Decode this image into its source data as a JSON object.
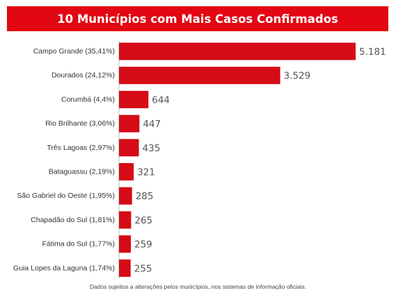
{
  "title": "10 Municípios com Mais Casos Confirmados",
  "footnote": "Dados sujeitos a alterações pelos municípios, nos sistemas de informação oficiais.",
  "colors": {
    "accent": "#e30613",
    "bar": "#d50b17",
    "label": "#333333",
    "value": "#555555"
  },
  "chart_data": {
    "type": "bar",
    "orientation": "horizontal",
    "title": "10 Municípios com Mais Casos Confirmados",
    "categories": [
      "Campo Grande (35,41%)",
      "Dourados (24,12%)",
      "Corumbá (4,4%)",
      "Rio Brilhante (3,06%)",
      "Três Lagoas (2,97%)",
      "Bataguassu (2,19%)",
      "São Gabriel do Oeste (1,95%)",
      "Chapadão do Sul (1,81%)",
      "Fátima do Sul (1,77%)",
      "Guia Lopes da Laguna (1,74%)"
    ],
    "values": [
      5181,
      3529,
      644,
      447,
      435,
      321,
      285,
      265,
      259,
      255
    ],
    "value_labels": [
      "5.181",
      "3.529",
      "644",
      "447",
      "435",
      "321",
      "285",
      "265",
      "259",
      "255"
    ],
    "grid": false,
    "legend": "none"
  }
}
